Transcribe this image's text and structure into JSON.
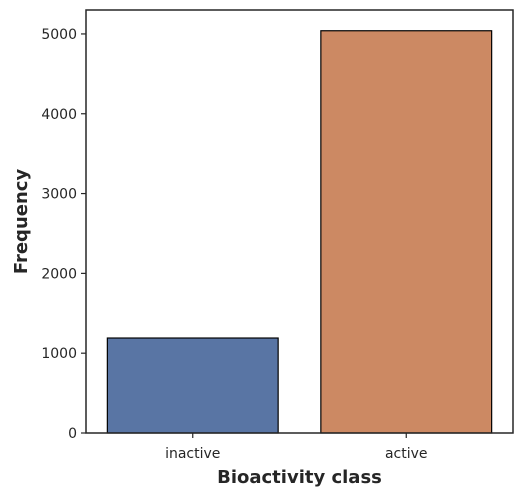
{
  "chart_data": {
    "type": "bar",
    "categories": [
      "inactive",
      "active"
    ],
    "values": [
      1190,
      5040
    ],
    "colors": [
      "#5975a4",
      "#cc8963"
    ],
    "edge_color": "#000000",
    "xlabel": "Bioactivity class",
    "ylabel": "Frequency",
    "ylim": [
      0,
      5300
    ],
    "yticks": [
      0,
      1000,
      2000,
      3000,
      4000,
      5000
    ],
    "ytick_labels": [
      "0",
      "1000",
      "2000",
      "3000",
      "4000",
      "5000"
    ],
    "grid": false,
    "legend": "none"
  }
}
